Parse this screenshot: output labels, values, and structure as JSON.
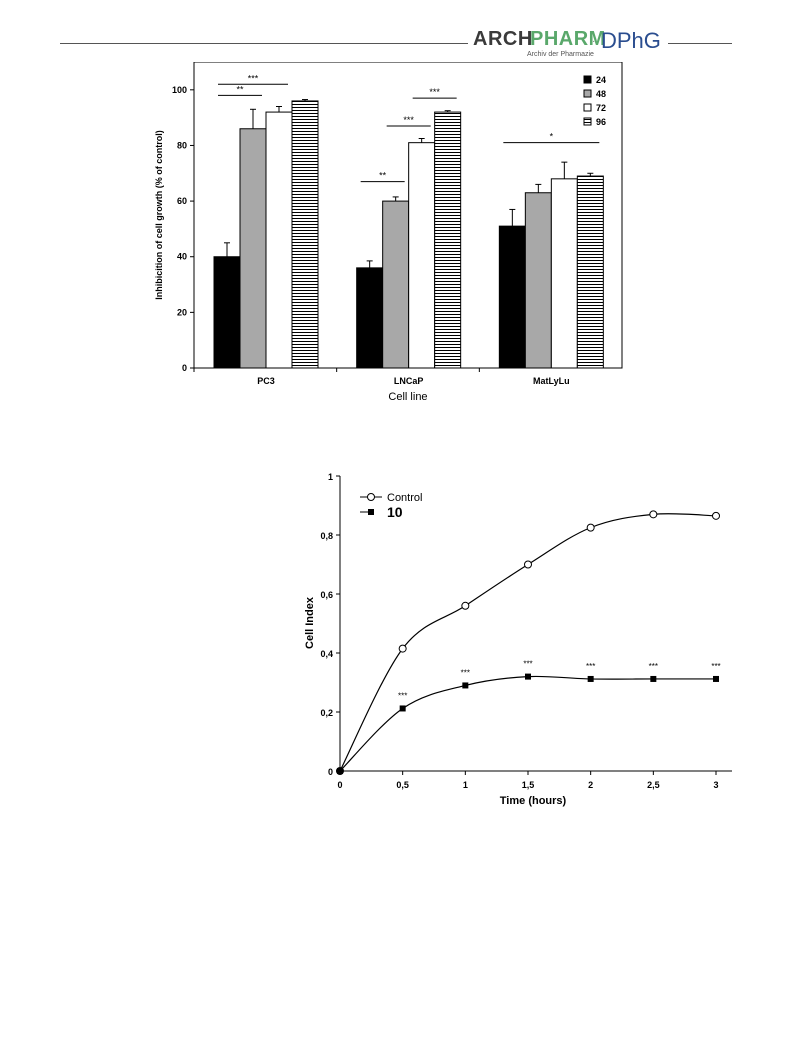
{
  "header": {
    "logo_arch": "ARCH",
    "logo_pharm": "PHARM",
    "logo_subtitle": "Archiv der Pharmazie",
    "logo_dphg": "DPhG"
  },
  "chart_data": [
    {
      "type": "bar",
      "xlabel": "Cell line",
      "ylabel": "Inhibicition of cell growth (% of control)",
      "ylim": [
        0,
        110
      ],
      "yticks": [
        0,
        20,
        40,
        60,
        80,
        100
      ],
      "categories": [
        "PC3",
        "LNCaP",
        "MatLyLu"
      ],
      "series": [
        {
          "name": "24",
          "values": [
            40,
            36,
            51
          ],
          "errors": [
            5,
            2.5,
            6
          ],
          "fill": "#000000"
        },
        {
          "name": "48",
          "values": [
            86,
            60,
            63
          ],
          "errors": [
            7,
            1.5,
            3
          ],
          "fill": "#a8a8a8"
        },
        {
          "name": "72",
          "values": [
            92,
            81,
            68
          ],
          "errors": [
            2,
            1.5,
            6
          ],
          "fill": "#ffffff"
        },
        {
          "name": "96",
          "values": [
            96,
            92,
            69
          ],
          "errors": [
            0.5,
            0.5,
            1
          ],
          "fill": "stripes"
        }
      ],
      "legend_position": "top-right",
      "significance": [
        {
          "label": "***",
          "category": 0,
          "from_series": 0,
          "to_series": 2,
          "y": 102
        },
        {
          "label": "**",
          "category": 0,
          "from_series": 0,
          "to_series": 1,
          "y": 98
        },
        {
          "label": "***",
          "category": 1,
          "from_series": 2,
          "to_series": 3,
          "y": 97
        },
        {
          "label": "***",
          "category": 1,
          "from_series": 1,
          "to_series": 2,
          "y": 87
        },
        {
          "label": "**",
          "category": 1,
          "from_series": 0,
          "to_series": 1,
          "y": 67
        },
        {
          "label": "*",
          "category": 2,
          "from_series": 0,
          "to_series": 3,
          "y": 81
        }
      ]
    },
    {
      "type": "line",
      "xlabel": "Time (hours)",
      "ylabel": "Cell Index",
      "xlim": [
        0,
        3
      ],
      "ylim": [
        0,
        1
      ],
      "xticks": [
        0,
        0.5,
        1,
        1.5,
        2,
        2.5,
        3
      ],
      "xtick_labels": [
        "0",
        "0,5",
        "1",
        "1,5",
        "2",
        "2,5",
        "3"
      ],
      "yticks": [
        0,
        0.2,
        0.4,
        0.6,
        0.8,
        1
      ],
      "ytick_labels": [
        "0",
        "0,2",
        "0,4",
        "0,6",
        "0,8",
        "1"
      ],
      "x": [
        0,
        0.5,
        1,
        1.5,
        2,
        2.5,
        3
      ],
      "series": [
        {
          "name": "Control",
          "values": [
            0,
            0.415,
            0.56,
            0.7,
            0.825,
            0.87,
            0.865
          ],
          "marker": "open-circle"
        },
        {
          "name": "10",
          "values": [
            0,
            0.212,
            0.29,
            0.32,
            0.312,
            0.312,
            0.312
          ],
          "marker": "filled-square"
        }
      ],
      "point_annotations": [
        "",
        "***",
        "***",
        "***",
        "***",
        "***",
        "***"
      ],
      "legend_position": "top-left"
    }
  ]
}
